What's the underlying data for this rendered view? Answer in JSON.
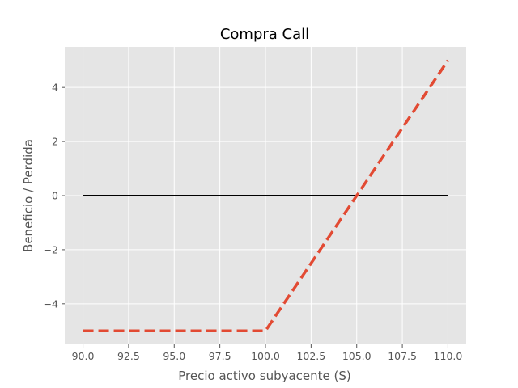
{
  "chart_data": {
    "type": "line",
    "title": "Compra Call",
    "xlabel": "Precio activo subyacente (S)",
    "ylabel": "Beneficio / Perdida",
    "xlim": [
      89.0,
      111.0
    ],
    "ylim": [
      -5.5,
      5.5
    ],
    "x_ticks": [
      90.0,
      92.5,
      95.0,
      97.5,
      100.0,
      102.5,
      105.0,
      107.5,
      110.0
    ],
    "x_tick_labels": [
      "90.0",
      "92.5",
      "95.0",
      "97.5",
      "100.0",
      "102.5",
      "105.0",
      "107.5",
      "110.0"
    ],
    "y_ticks": [
      -4,
      -2,
      0,
      2,
      4
    ],
    "y_tick_labels": [
      "−4",
      "−2",
      "0",
      "2",
      "4"
    ],
    "grid": true,
    "background": "#e5e5e5",
    "series": [
      {
        "color": "#000000",
        "style": "solid",
        "x": [
          90,
          110
        ],
        "y": [
          0,
          0
        ]
      },
      {
        "color": "#e24a33",
        "style": "dashed",
        "x": [
          90,
          100,
          110
        ],
        "y": [
          -5,
          -5,
          5
        ]
      }
    ]
  }
}
